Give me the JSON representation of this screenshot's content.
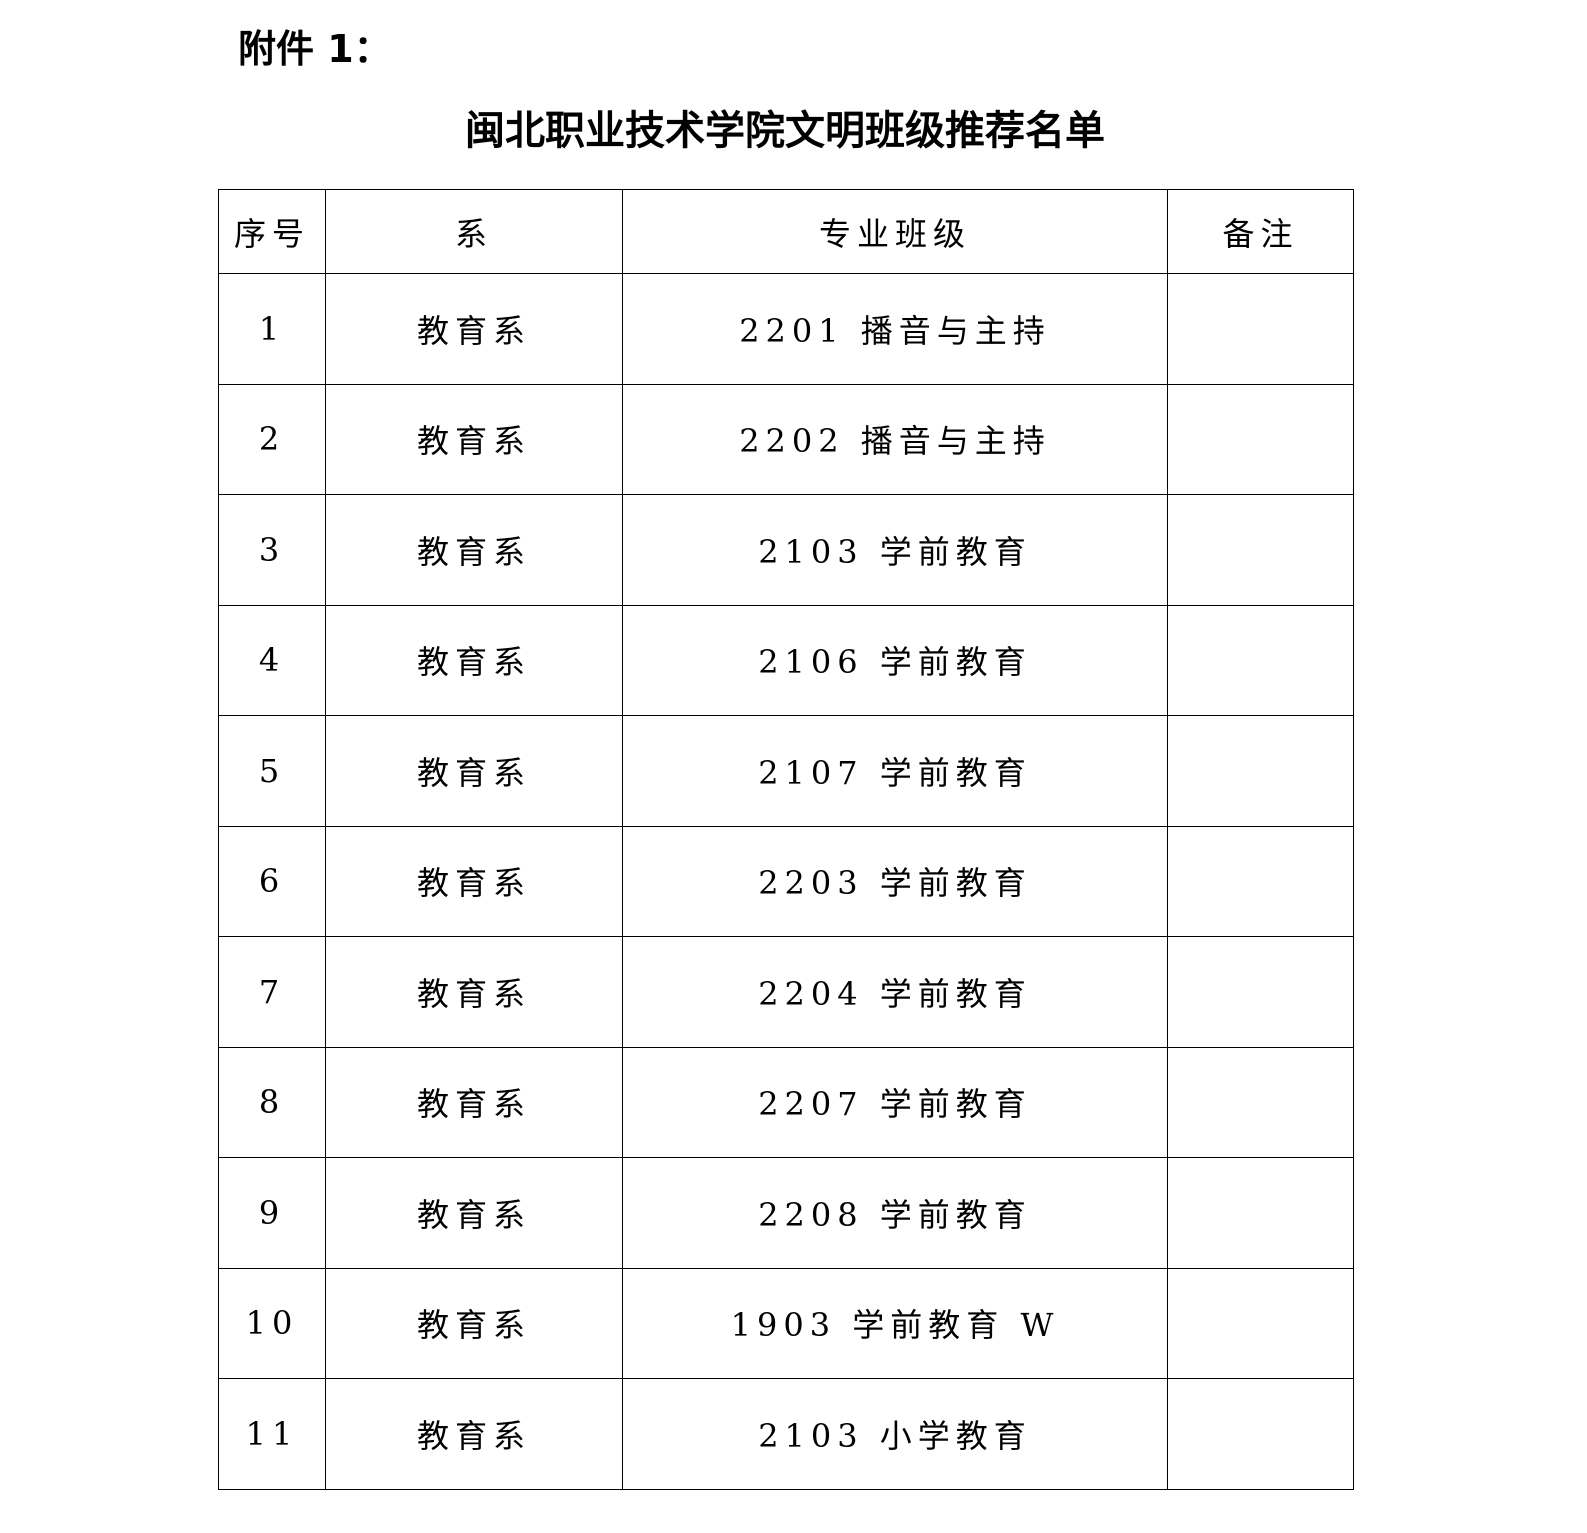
{
  "attachment_label": "附件 1：",
  "title": "闽北职业技术学院文明班级推荐名单",
  "table": {
    "headers": [
      "序号",
      "系",
      "专业班级",
      "备注"
    ],
    "rows": [
      {
        "no": "1",
        "dept": "教育系",
        "class": "2201 播音与主持",
        "note": ""
      },
      {
        "no": "2",
        "dept": "教育系",
        "class": "2202 播音与主持",
        "note": ""
      },
      {
        "no": "3",
        "dept": "教育系",
        "class": "2103 学前教育",
        "note": ""
      },
      {
        "no": "4",
        "dept": "教育系",
        "class": "2106 学前教育",
        "note": ""
      },
      {
        "no": "5",
        "dept": "教育系",
        "class": "2107 学前教育",
        "note": ""
      },
      {
        "no": "6",
        "dept": "教育系",
        "class": "2203 学前教育",
        "note": ""
      },
      {
        "no": "7",
        "dept": "教育系",
        "class": "2204 学前教育",
        "note": ""
      },
      {
        "no": "8",
        "dept": "教育系",
        "class": "2207 学前教育",
        "note": ""
      },
      {
        "no": "9",
        "dept": "教育系",
        "class": "2208 学前教育",
        "note": ""
      },
      {
        "no": "10",
        "dept": "教育系",
        "class": "1903 学前教育 W",
        "note": ""
      },
      {
        "no": "11",
        "dept": "教育系",
        "class": "2103 小学教育",
        "note": ""
      }
    ]
  }
}
